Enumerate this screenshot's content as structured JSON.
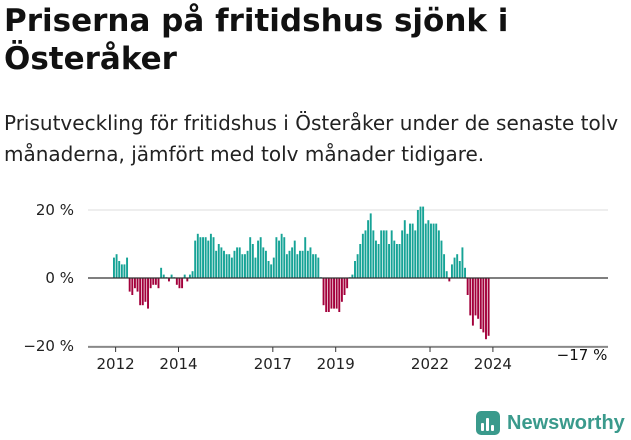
{
  "header": {
    "title": "Priserna på fritidshus sjönk i Österåker",
    "subtitle": "Prisutveckling för fritidshus i Österåker under de senaste tolv månaderna, jämfört med tolv månader tidigare."
  },
  "brand": {
    "name": "Newsworthy",
    "icon": "newsworthy-logo-icon",
    "color": "#3a9a8c"
  },
  "chart_data": {
    "type": "bar",
    "title": "",
    "xlabel": "",
    "ylabel": "",
    "ylim": [
      -20,
      20
    ],
    "y_ticks": [
      {
        "value": 20,
        "label": "20 %"
      },
      {
        "value": 0,
        "label": "0 %"
      },
      {
        "value": -20,
        "label": "−20 %"
      }
    ],
    "x_ticks": [
      {
        "x": 2012,
        "label": "2012"
      },
      {
        "x": 2014,
        "label": "2014"
      },
      {
        "x": 2017,
        "label": "2017"
      },
      {
        "x": 2019,
        "label": "2019"
      },
      {
        "x": 2022,
        "label": "2022"
      },
      {
        "x": 2024,
        "label": "2024"
      }
    ],
    "grid": "horizontal",
    "colors": {
      "positive": "#16a396",
      "negative": "#a3003b",
      "grid": "#dddddd",
      "zero_line": "#333333"
    },
    "annotation": {
      "text": "−17 %",
      "x": 2024.25,
      "y": -17
    },
    "start": {
      "year": 2011,
      "month": 12
    },
    "values": [
      6,
      7,
      5,
      4,
      4,
      6,
      -4,
      -5,
      -3,
      -4,
      -8,
      -8,
      -7,
      -9,
      -3,
      -2,
      -2,
      -3,
      3,
      1,
      0,
      -1,
      1,
      0,
      -2,
      -3,
      -3,
      1,
      -1,
      1,
      2,
      11,
      13,
      12,
      12,
      12,
      11,
      13,
      12,
      8,
      10,
      9,
      8,
      7,
      7,
      6,
      8,
      9,
      9,
      7,
      7,
      8,
      12,
      10,
      6,
      11,
      12,
      9,
      8,
      5,
      4,
      6,
      12,
      11,
      13,
      12,
      7,
      8,
      9,
      11,
      7,
      8,
      8,
      12,
      8,
      9,
      7,
      7,
      6,
      0,
      -8,
      -10,
      -10,
      -9,
      -9,
      -9,
      -10,
      -7,
      -5,
      -3,
      0,
      1,
      5,
      7,
      10,
      13,
      14,
      17,
      19,
      14,
      11,
      10,
      14,
      14,
      14,
      10,
      14,
      11,
      10,
      10,
      14,
      17,
      13,
      16,
      16,
      14,
      20,
      21,
      21,
      16,
      17,
      16,
      16,
      16,
      14,
      11,
      7,
      2,
      -1,
      4,
      6,
      7,
      5,
      9,
      3,
      -5,
      -11,
      -14,
      -11,
      -12,
      -15,
      -16,
      -18,
      -17
    ]
  }
}
